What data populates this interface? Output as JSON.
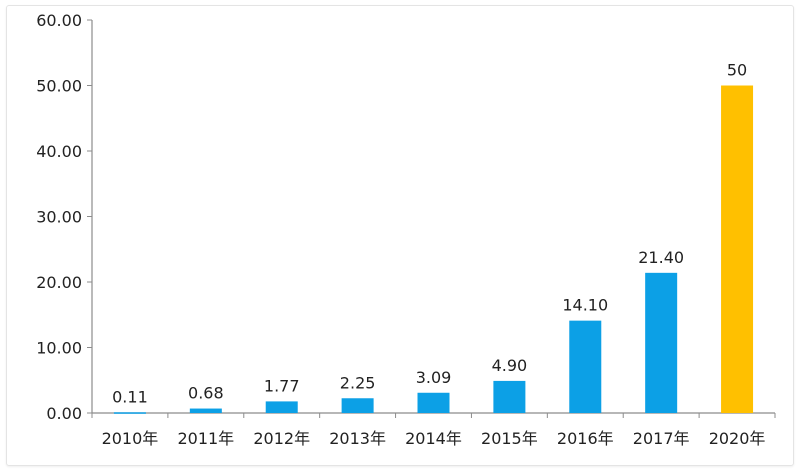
{
  "chart_data": {
    "type": "bar",
    "title": "",
    "xlabel": "",
    "ylabel": "",
    "categories": [
      "2010年",
      "2011年",
      "2012年",
      "2013年",
      "2014年",
      "2015年",
      "2016年",
      "2017年",
      "2020年"
    ],
    "values": [
      0.11,
      0.68,
      1.77,
      2.25,
      3.09,
      4.9,
      14.1,
      21.4,
      50
    ],
    "data_labels": [
      "0.11",
      "0.68",
      "1.77",
      "2.25",
      "3.09",
      "4.90",
      "14.10",
      "21.40",
      "50"
    ],
    "ylim": [
      0,
      60
    ],
    "yticks": [
      "0.00",
      "10.00",
      "20.00",
      "30.00",
      "40.00",
      "50.00",
      "60.00"
    ],
    "grid": false,
    "colors": {
      "bar": "#0ca0e6",
      "highlight": "#ffc000",
      "axis": "#8c8c8c"
    },
    "highlight_index": 8
  }
}
